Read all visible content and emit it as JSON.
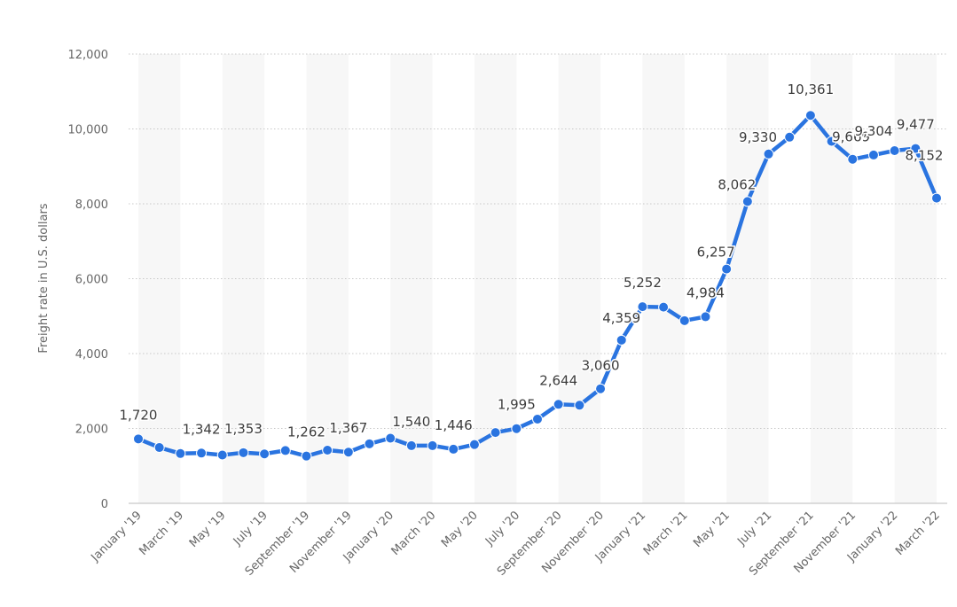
{
  "chart_data": {
    "type": "line",
    "title": "",
    "xlabel": "",
    "ylabel": "Freight rate in U.S. dollars",
    "ylim": [
      0,
      12000
    ],
    "yticks": [
      0,
      2000,
      4000,
      6000,
      8000,
      10000,
      12000
    ],
    "ytick_labels": [
      "0",
      "2,000",
      "4,000",
      "6,000",
      "8,000",
      "10,000",
      "12,000"
    ],
    "grid": true,
    "color": "#2a74e0",
    "x": [
      "Jan '19",
      "Feb '19",
      "Mar '19",
      "Apr '19",
      "May '19",
      "Jun '19",
      "Jul '19",
      "Aug '19",
      "Sep '19",
      "Oct '19",
      "Nov '19",
      "Dec '19",
      "Jan '20",
      "Feb '20",
      "Mar '20",
      "Apr '20",
      "May '20",
      "Jun '20",
      "Jul '20",
      "Aug '20",
      "Sep '20",
      "Oct '20",
      "Nov '20",
      "Dec '20",
      "Jan '21",
      "Feb '21",
      "Mar '21",
      "Apr '21",
      "May '21",
      "Jun '21",
      "Jul '21",
      "Aug '21",
      "Sep '21",
      "Oct '21",
      "Nov '21",
      "Dec '21",
      "Jan '22",
      "Feb '22",
      "Mar '22"
    ],
    "x_tick_labels": [
      "January '19",
      "March '19",
      "May '19",
      "July '19",
      "September '19",
      "November '19",
      "January '20",
      "March '20",
      "May '20",
      "July '20",
      "September '20",
      "November '20",
      "January '21",
      "March '21",
      "May '21",
      "July '21",
      "September '21",
      "November '21",
      "January '22",
      "March '22"
    ],
    "values": [
      1720,
      1490,
      1330,
      1342,
      1290,
      1353,
      1320,
      1410,
      1262,
      1420,
      1367,
      1590,
      1740,
      1540,
      1540,
      1446,
      1570,
      1890,
      1995,
      2250,
      2644,
      2620,
      3060,
      4359,
      5252,
      5240,
      4880,
      4984,
      6257,
      8062,
      9330,
      9780,
      10361,
      9669,
      9190,
      9304,
      9420,
      9477,
      8152
    ],
    "data_labels": [
      {
        "index": 0,
        "text": "1,720"
      },
      {
        "index": 3,
        "text": "1,342"
      },
      {
        "index": 5,
        "text": "1,353"
      },
      {
        "index": 8,
        "text": "1,262"
      },
      {
        "index": 10,
        "text": "1,367"
      },
      {
        "index": 13,
        "text": "1,540"
      },
      {
        "index": 15,
        "text": "1,446"
      },
      {
        "index": 18,
        "text": "1,995"
      },
      {
        "index": 20,
        "text": "2,644"
      },
      {
        "index": 22,
        "text": "3,060"
      },
      {
        "index": 23,
        "text": "4,359"
      },
      {
        "index": 24,
        "text": "5,252"
      },
      {
        "index": 27,
        "text": "4,984"
      },
      {
        "index": 28,
        "text": "6,257"
      },
      {
        "index": 29,
        "text": "8,062"
      },
      {
        "index": 30,
        "text": "9,330"
      },
      {
        "index": 32,
        "text": "10,361"
      },
      {
        "index": 33,
        "text": "9,669"
      },
      {
        "index": 35,
        "text": "9,304"
      },
      {
        "index": 37,
        "text": "9,477"
      },
      {
        "index": 38,
        "text": "8,152"
      }
    ]
  }
}
